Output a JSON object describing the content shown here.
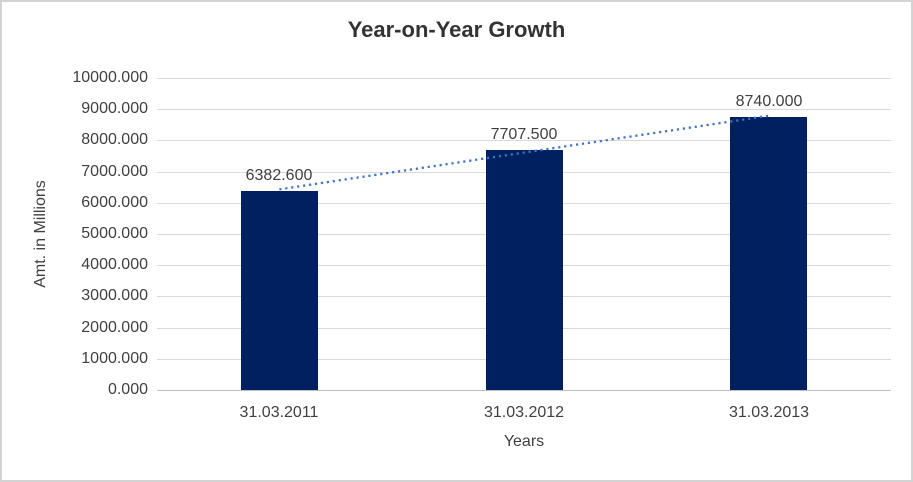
{
  "chart_data": {
    "type": "bar",
    "title": "Year-on-Year Growth",
    "categories": [
      "31.03.2011",
      "31.03.2012",
      "31.03.2013"
    ],
    "values": [
      6382.6,
      7707.5,
      8740.0
    ],
    "data_labels": [
      "6382.600",
      "7707.500",
      "8740.000"
    ],
    "xlabel": "Years",
    "ylabel": "Amt. in Millions",
    "ylim": [
      0,
      10000
    ],
    "ytick_step": 1000,
    "ytick_decimals": 3,
    "grid": true,
    "legend": "none",
    "bar_color": "#002060",
    "gridline_color": "#d9d9d9",
    "axis_line_color": "#bfbfbf",
    "label_color": "#404040",
    "title_color": "#333333",
    "trendline": {
      "type": "linear",
      "style": "dotted",
      "color": "#4472C4"
    }
  }
}
